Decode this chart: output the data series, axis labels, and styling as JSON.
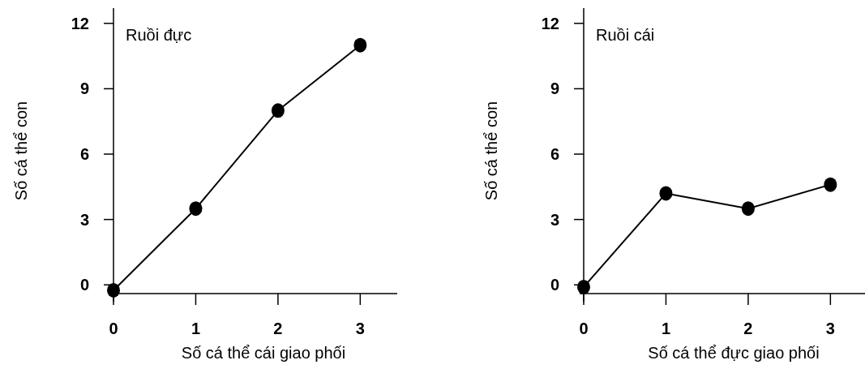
{
  "chart_data": [
    {
      "type": "line",
      "annotations": [
        "Ruồi đực"
      ],
      "xlabel": "Số cá thể cái giao phối",
      "ylabel": "Số cá thể con",
      "x": [
        0,
        1,
        2,
        3
      ],
      "values": [
        -0.25,
        3.5,
        8,
        11
      ],
      "color": "#000000",
      "marker": "circle",
      "line_style": "solid",
      "xlim": [
        0,
        3.45
      ],
      "xticks": [
        0,
        1,
        2,
        3
      ],
      "ylim": [
        -0.4,
        12.7
      ],
      "yticks": [
        0,
        3,
        6,
        9,
        12
      ],
      "grid": false
    },
    {
      "type": "line",
      "annotations": [
        "Ruồi cái"
      ],
      "xlabel": "Số cá thể đực giao phối",
      "ylabel": "Số cá thể con",
      "x": [
        0,
        1,
        2,
        3
      ],
      "values": [
        -0.1,
        4.2,
        3.5,
        4.6
      ],
      "color": "#000000",
      "marker": "circle",
      "line_style": "solid",
      "xlim": [
        0,
        3.45
      ],
      "xticks": [
        0,
        1,
        2,
        3
      ],
      "ylim": [
        -0.4,
        12.7
      ],
      "yticks": [
        0,
        3,
        6,
        9,
        12
      ],
      "grid": false
    }
  ]
}
